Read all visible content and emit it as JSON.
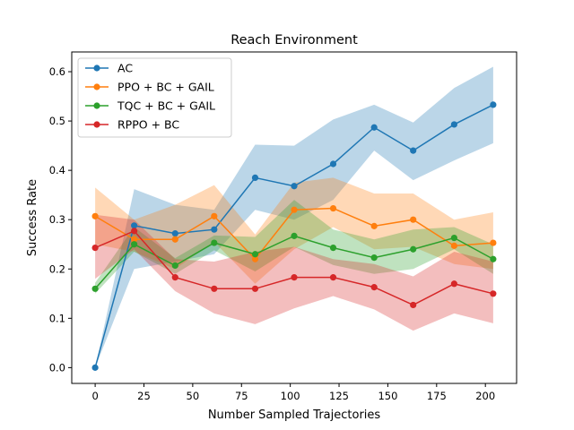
{
  "chart_data": {
    "type": "line",
    "title": "Reach Environment",
    "xlabel": "Number Sampled Trajectories",
    "ylabel": "Success Rate",
    "xlim": [
      -12,
      216
    ],
    "ylim": [
      -0.032,
      0.64
    ],
    "xticks": [
      0,
      25,
      50,
      75,
      100,
      125,
      150,
      175,
      200
    ],
    "yticks": [
      0.0,
      0.1,
      0.2,
      0.3,
      0.4,
      0.5,
      0.6
    ],
    "ytick_labels": [
      "0.0",
      "0.1",
      "0.2",
      "0.3",
      "0.4",
      "0.5",
      "0.6"
    ],
    "grid": false,
    "legend_position": "top-left",
    "series": [
      {
        "name": "AC",
        "color": "#1f77b4",
        "x": [
          0,
          20,
          41,
          61,
          82,
          102,
          122,
          143,
          163,
          184,
          204
        ],
        "y": [
          0.0,
          0.288,
          0.272,
          0.28,
          0.385,
          0.368,
          0.413,
          0.487,
          0.44,
          0.493,
          0.533
        ],
        "lower": [
          0.0,
          0.2,
          0.215,
          0.23,
          0.32,
          0.3,
          0.34,
          0.44,
          0.38,
          0.42,
          0.455
        ],
        "upper": [
          0.0,
          0.362,
          0.33,
          0.32,
          0.452,
          0.45,
          0.503,
          0.533,
          0.497,
          0.567,
          0.61
        ]
      },
      {
        "name": "PPO + BC + GAIL",
        "color": "#ff7f0e",
        "x": [
          0,
          20,
          41,
          61,
          82,
          102,
          122,
          143,
          163,
          184,
          204
        ],
        "y": [
          0.307,
          0.26,
          0.26,
          0.307,
          0.22,
          0.32,
          0.323,
          0.287,
          0.3,
          0.247,
          0.253
        ],
        "lower": [
          0.25,
          0.235,
          0.2,
          0.255,
          0.17,
          0.24,
          0.285,
          0.24,
          0.245,
          0.21,
          0.2
        ],
        "upper": [
          0.365,
          0.3,
          0.33,
          0.37,
          0.27,
          0.375,
          0.385,
          0.353,
          0.353,
          0.3,
          0.315
        ]
      },
      {
        "name": "TQC + BC + GAIL",
        "color": "#2ca02c",
        "x": [
          0,
          20,
          41,
          61,
          82,
          102,
          122,
          143,
          163,
          184,
          204
        ],
        "y": [
          0.16,
          0.25,
          0.207,
          0.253,
          0.23,
          0.267,
          0.243,
          0.223,
          0.24,
          0.263,
          0.22
        ],
        "lower": [
          0.15,
          0.235,
          0.19,
          0.238,
          0.195,
          0.245,
          0.208,
          0.19,
          0.2,
          0.24,
          0.19
        ],
        "upper": [
          0.172,
          0.285,
          0.222,
          0.268,
          0.265,
          0.34,
          0.28,
          0.26,
          0.28,
          0.285,
          0.25
        ]
      },
      {
        "name": "RPPO + BC",
        "color": "#d62728",
        "x": [
          0,
          20,
          41,
          61,
          82,
          102,
          122,
          143,
          163,
          184,
          204
        ],
        "y": [
          0.243,
          0.277,
          0.183,
          0.16,
          0.16,
          0.183,
          0.183,
          0.163,
          0.127,
          0.17,
          0.15
        ],
        "lower": [
          0.18,
          0.24,
          0.155,
          0.11,
          0.088,
          0.12,
          0.145,
          0.118,
          0.075,
          0.11,
          0.09
        ],
        "upper": [
          0.31,
          0.3,
          0.22,
          0.215,
          0.235,
          0.245,
          0.22,
          0.21,
          0.185,
          0.235,
          0.215
        ]
      }
    ]
  }
}
